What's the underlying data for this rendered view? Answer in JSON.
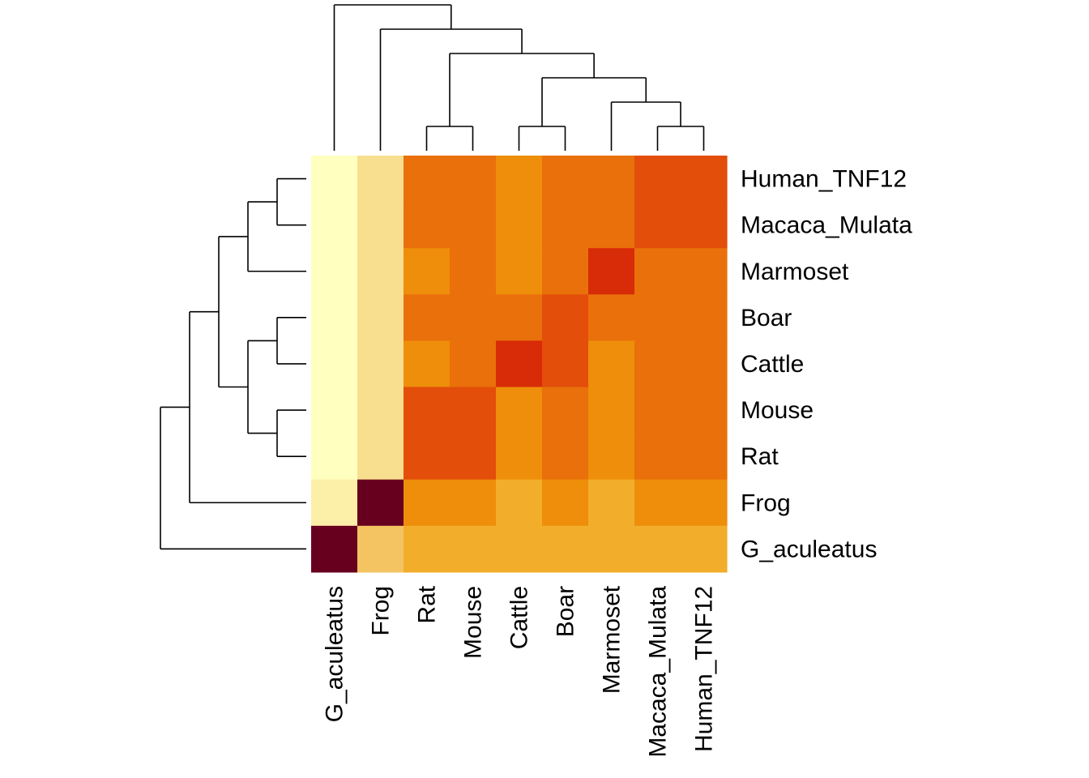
{
  "chart_data": {
    "type": "heatmap",
    "title": "",
    "xlabel": "",
    "ylabel": "",
    "column_labels": [
      "G_aculeatus",
      "Frog",
      "Rat",
      "Mouse",
      "Cattle",
      "Boar",
      "Marmoset",
      "Macaca_Mulata",
      "Human_TNF12"
    ],
    "row_labels": [
      "Human_TNF12",
      "Macaca_Mulata",
      "Marmoset",
      "Boar",
      "Cattle",
      "Mouse",
      "Rat",
      "Frog",
      "G_aculeatus"
    ],
    "color_scale": [
      "#FFFFBF",
      "#F8DE8F",
      "#F5C462",
      "#F2AE2A",
      "#EE8E0A",
      "#E9700A",
      "#E34E0A",
      "#D82B08",
      "#67001F"
    ],
    "values": [
      [
        0,
        1,
        5,
        5,
        4,
        5,
        5,
        6,
        6
      ],
      [
        0,
        1,
        5,
        5,
        4,
        5,
        5,
        6,
        6
      ],
      [
        0,
        1,
        4,
        5,
        4,
        5,
        7,
        5,
        5
      ],
      [
        0,
        1,
        5,
        5,
        5,
        6,
        5,
        5,
        5
      ],
      [
        0,
        1,
        4,
        5,
        7,
        6,
        4,
        5,
        5
      ],
      [
        0,
        1,
        6,
        6,
        4,
        5,
        4,
        5,
        5
      ],
      [
        0,
        1,
        6,
        6,
        4,
        5,
        4,
        5,
        5
      ],
      [
        0.5,
        8,
        4,
        4,
        3,
        4,
        3,
        4,
        4
      ],
      [
        8,
        2,
        3,
        3,
        3,
        3,
        3,
        3,
        3
      ]
    ],
    "row_dendrogram": [
      [
        0,
        1
      ],
      [
        9,
        2
      ],
      [
        3,
        4
      ],
      [
        5,
        6
      ],
      [
        11,
        12
      ],
      [
        10,
        13
      ],
      [
        14,
        7
      ],
      [
        15,
        8
      ]
    ],
    "column_dendrogram": [
      [
        7,
        8
      ],
      [
        2,
        3
      ],
      [
        4,
        5
      ],
      [
        9,
        6
      ],
      [
        11,
        12
      ],
      [
        10,
        13
      ],
      [
        14,
        1
      ],
      [
        15,
        0
      ]
    ],
    "grid": false,
    "legend": "none"
  }
}
